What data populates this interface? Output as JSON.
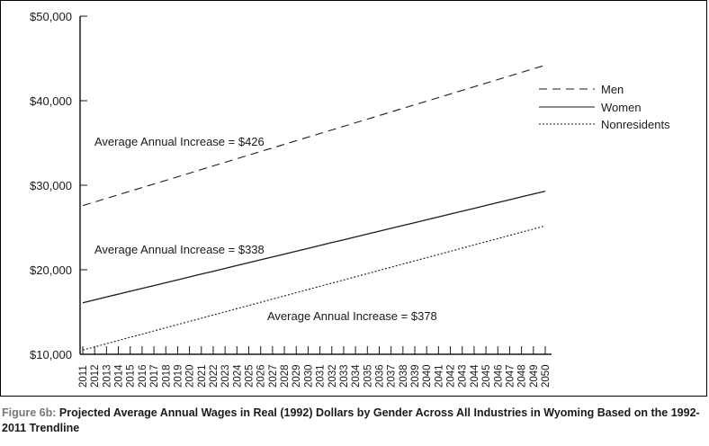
{
  "chart_data": {
    "type": "line",
    "x": [
      2011,
      2012,
      2013,
      2014,
      2015,
      2016,
      2017,
      2018,
      2019,
      2020,
      2021,
      2022,
      2023,
      2024,
      2025,
      2026,
      2027,
      2028,
      2029,
      2030,
      2031,
      2032,
      2033,
      2034,
      2035,
      2036,
      2037,
      2038,
      2039,
      2040,
      2041,
      2042,
      2043,
      2044,
      2045,
      2046,
      2047,
      2048,
      2049,
      2050
    ],
    "ylim": [
      10000,
      50000
    ],
    "yticks": [
      10000,
      20000,
      30000,
      40000,
      50000
    ],
    "ytick_labels": [
      "$10,000",
      "$20,000",
      "$30,000",
      "$40,000",
      "$50,000"
    ],
    "series": [
      {
        "name": "Men",
        "style": "dashed",
        "start": 27600,
        "end": 44200,
        "annotation": "Average Annual Increase = $426"
      },
      {
        "name": "Women",
        "style": "solid",
        "start": 16100,
        "end": 29300,
        "annotation": "Average Annual Increase = $338"
      },
      {
        "name": "Nonresidents",
        "style": "dotted",
        "start": 10500,
        "end": 25200,
        "annotation": "Average Annual Increase = $378"
      }
    ],
    "legend_position": "top-right",
    "grid": false
  },
  "caption": {
    "figure_label": "Figure 6b:",
    "text": "Projected Average Annual Wages in Real (1992) Dollars by Gender Across All Industries in Wyoming Based on the 1992-2011 Trendline"
  },
  "colors": {
    "line": "#1a1a1a",
    "figure_label": "#777777"
  }
}
